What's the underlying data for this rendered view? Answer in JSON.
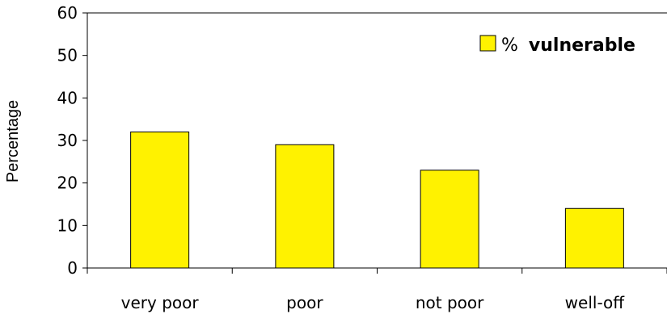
{
  "chart_data": {
    "type": "bar",
    "categories": [
      "very poor",
      "poor",
      "not poor",
      "well-off"
    ],
    "series": [
      {
        "name": "% vulnerable",
        "values": [
          32,
          29,
          23,
          14
        ],
        "color": "#FFF200"
      }
    ],
    "ylabel": "Percentage",
    "ylim": [
      0,
      60
    ],
    "yticks": [
      0,
      10,
      20,
      30,
      40,
      50,
      60
    ],
    "grid": false,
    "legend": {
      "placement": "top-right",
      "prefix": "%",
      "label": "vulnerable"
    },
    "bar_border_color": "#000000",
    "axis_color": "#000000"
  }
}
